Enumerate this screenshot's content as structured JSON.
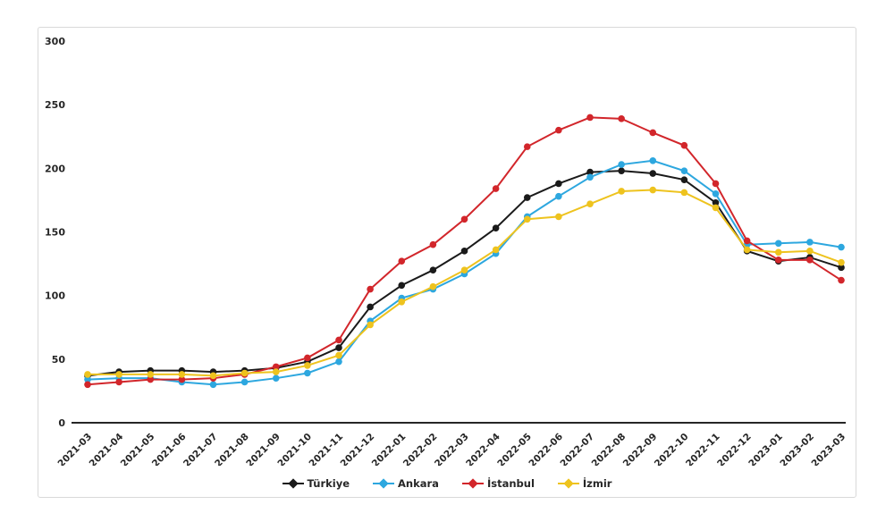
{
  "chart_data": {
    "type": "line",
    "title": "",
    "xlabel": "",
    "ylabel": "",
    "ylim": [
      0,
      300
    ],
    "ytick_step": 50,
    "grid": false,
    "legend_position": "bottom",
    "categories": [
      "2021-03",
      "2021-04",
      "2021-05",
      "2021-06",
      "2021-07",
      "2021-08",
      "2021-09",
      "2021-10",
      "2021-11",
      "2021-12",
      "2022-01",
      "2022-02",
      "2022-03",
      "2022-04",
      "2022-05",
      "2022-06",
      "2022-07",
      "2022-08",
      "2022-09",
      "2022-10",
      "2022-11",
      "2022-12",
      "2023-01",
      "2023-02",
      "2023-03"
    ],
    "series": [
      {
        "name": "Türkiye",
        "id": "turkiye",
        "color": "#1a1a1a",
        "values": [
          37,
          40,
          41,
          41,
          40,
          41,
          43,
          48,
          59,
          91,
          108,
          120,
          135,
          153,
          177,
          188,
          197,
          198,
          196,
          191,
          173,
          135,
          127,
          130,
          122
        ]
      },
      {
        "name": "Ankara",
        "id": "ankara",
        "color": "#2da7df",
        "values": [
          34,
          35,
          35,
          32,
          30,
          32,
          35,
          39,
          48,
          80,
          98,
          105,
          117,
          133,
          162,
          178,
          193,
          203,
          206,
          198,
          180,
          140,
          141,
          142,
          138
        ]
      },
      {
        "name": "İstanbul",
        "id": "istanbul",
        "color": "#d2262b",
        "values": [
          30,
          32,
          34,
          34,
          35,
          38,
          44,
          51,
          65,
          105,
          127,
          140,
          160,
          184,
          217,
          230,
          240,
          239,
          228,
          218,
          188,
          143,
          128,
          128,
          112
        ]
      },
      {
        "name": "İzmir",
        "id": "izmir",
        "color": "#eec31e",
        "values": [
          38,
          38,
          38,
          38,
          37,
          39,
          40,
          45,
          53,
          77,
          95,
          107,
          120,
          136,
          160,
          162,
          172,
          182,
          183,
          181,
          169,
          136,
          134,
          135,
          126
        ]
      }
    ],
    "axis_color": "#262626",
    "panel_border_color": "#d9d9d9"
  }
}
